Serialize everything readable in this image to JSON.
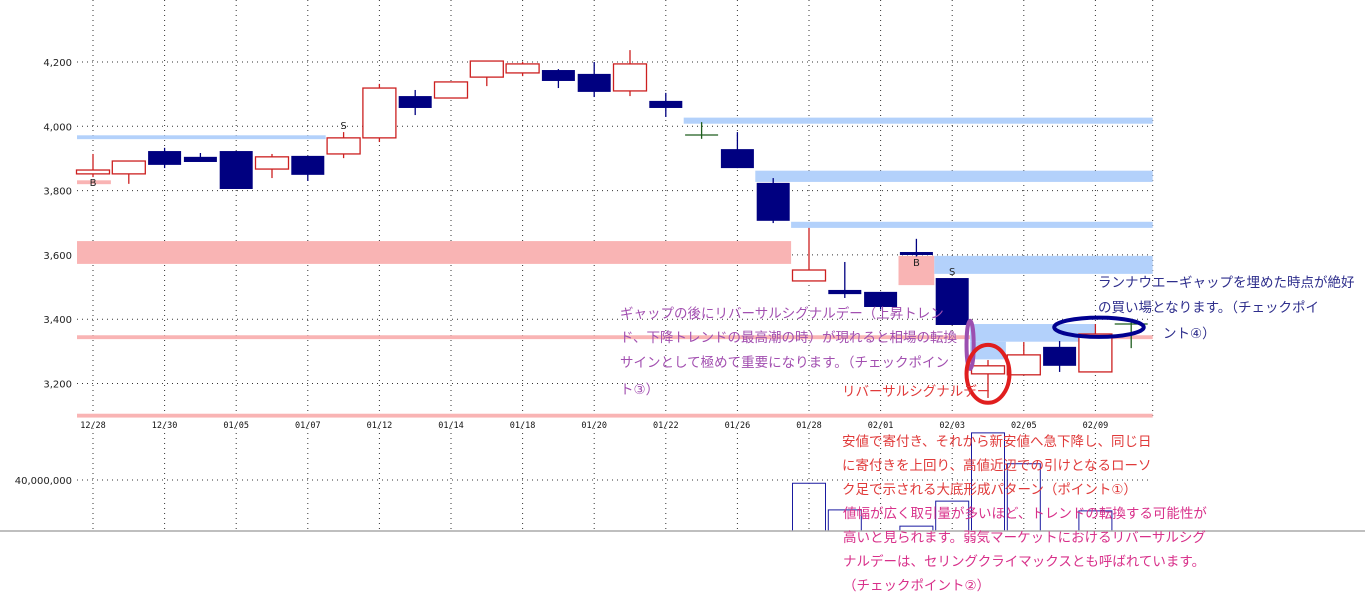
{
  "chart_data": {
    "type": "candlestick",
    "title": "",
    "ylim": [
      3080,
      4290
    ],
    "yticks": [
      "4,200",
      "4,000",
      "3,800",
      "3,600",
      "3,400",
      "3,200"
    ],
    "ytick_values": [
      4200,
      4000,
      3800,
      3600,
      3400,
      3200
    ],
    "date_labels": [
      "12/28",
      "12/30",
      "01/05",
      "01/07",
      "01/12",
      "01/14",
      "01/18",
      "01/20",
      "01/22",
      "01/26",
      "01/28",
      "02/01",
      "02/03",
      "02/05",
      "02/09"
    ],
    "grid": true,
    "colors": {
      "up": "#cc2020",
      "down": "#000080",
      "doji": "#1e5e1e",
      "resistance_band": "#b3d1fb",
      "support_band": "#f9b4b4"
    },
    "candles": [
      {
        "o": 3852,
        "h": 3914,
        "l": 3842,
        "c": 3864
      },
      {
        "o": 3852,
        "h": 3892,
        "l": 3821,
        "c": 3892
      },
      {
        "o": 3923,
        "h": 3933,
        "l": 3870,
        "c": 3880
      },
      {
        "o": 3905,
        "h": 3917,
        "l": 3889,
        "c": 3889
      },
      {
        "o": 3923,
        "h": 3923,
        "l": 3805,
        "c": 3805
      },
      {
        "o": 3867,
        "h": 3914,
        "l": 3839,
        "c": 3905
      },
      {
        "o": 3908,
        "h": 3908,
        "l": 3830,
        "c": 3849
      },
      {
        "o": 3914,
        "h": 3982,
        "l": 3901,
        "c": 3964
      },
      {
        "o": 3964,
        "h": 4132,
        "l": 3951,
        "c": 4119
      },
      {
        "o": 4094,
        "h": 4113,
        "l": 4035,
        "c": 4057
      },
      {
        "o": 4088,
        "h": 4138,
        "l": 4088,
        "c": 4138
      },
      {
        "o": 4153,
        "h": 4203,
        "l": 4125,
        "c": 4203
      },
      {
        "o": 4166,
        "h": 4200,
        "l": 4156,
        "c": 4194
      },
      {
        "o": 4175,
        "h": 4178,
        "l": 4119,
        "c": 4141
      },
      {
        "o": 4163,
        "h": 4200,
        "l": 4091,
        "c": 4107
      },
      {
        "o": 4110,
        "h": 4237,
        "l": 4094,
        "c": 4194
      },
      {
        "o": 4079,
        "h": 4104,
        "l": 4029,
        "c": 4057
      },
      {
        "o": 3973,
        "h": 4013,
        "l": 3961,
        "c": 3973
      },
      {
        "o": 3929,
        "h": 3982,
        "l": 3870,
        "c": 3870
      },
      {
        "o": 3824,
        "h": 3839,
        "l": 3699,
        "c": 3706
      },
      {
        "o": 3519,
        "h": 3684,
        "l": 3519,
        "c": 3553
      },
      {
        "o": 3491,
        "h": 3578,
        "l": 3466,
        "c": 3478
      },
      {
        "o": 3485,
        "h": 3485,
        "l": 3430,
        "c": 3438
      },
      {
        "o": 3609,
        "h": 3650,
        "l": 3595,
        "c": 3603
      },
      {
        "o": 3528,
        "h": 3528,
        "l": 3382,
        "c": 3382
      },
      {
        "o": 3230,
        "h": 3273,
        "l": 3155,
        "c": 3255
      },
      {
        "o": 3227,
        "h": 3329,
        "l": 3227,
        "c": 3289
      },
      {
        "o": 3314,
        "h": 3332,
        "l": 3236,
        "c": 3255
      },
      {
        "o": 3236,
        "h": 3385,
        "l": 3236,
        "c": 3354
      },
      {
        "o": 3385,
        "h": 3391,
        "l": 3310,
        "c": 3385
      }
    ],
    "signals": [
      {
        "label": "B",
        "candle": 0,
        "pos": "below"
      },
      {
        "label": "S",
        "candle": 7,
        "pos": "above"
      },
      {
        "label": "B",
        "candle": 23,
        "pos": "below"
      },
      {
        "label": "S",
        "candle": 24,
        "pos": "above"
      }
    ],
    "bands": [
      {
        "kind": "resistance",
        "from": -0.5,
        "to": 6.5,
        "lo": 3960,
        "hi": 3972
      },
      {
        "kind": "support",
        "from": -0.4,
        "to": 0.5,
        "lo": 3820,
        "hi": 3832
      },
      {
        "kind": "support",
        "from": -0.5,
        "to": 19.5,
        "lo": 3572,
        "hi": 3643
      },
      {
        "kind": "support",
        "from": -0.5,
        "to": 29.6,
        "lo": 3338,
        "hi": 3350
      },
      {
        "kind": "support",
        "from": -0.5,
        "to": 29.6,
        "lo": 3094,
        "hi": 3106
      },
      {
        "kind": "resistance",
        "from": 16.5,
        "to": 29.6,
        "lo": 4008,
        "hi": 4027
      },
      {
        "kind": "resistance",
        "from": 18.5,
        "to": 29.6,
        "lo": 3827,
        "hi": 3862
      },
      {
        "kind": "resistance",
        "from": 19.5,
        "to": 29.6,
        "lo": 3684,
        "hi": 3703
      },
      {
        "kind": "support",
        "from": 22.5,
        "to": 23.5,
        "lo": 3506,
        "hi": 3597
      },
      {
        "kind": "resistance",
        "from": 23.5,
        "to": 29.6,
        "lo": 3541,
        "hi": 3597
      },
      {
        "kind": "resistance",
        "from": 24.5,
        "to": 28,
        "lo": 3330,
        "hi": 3385
      },
      {
        "kind": "resistance",
        "from": 24.5,
        "to": 25.5,
        "lo": 3275,
        "hi": 3330
      }
    ],
    "highlights": [
      {
        "shape": "ellipse",
        "color": "#9b4fb0",
        "candle": 24.5,
        "price": 3320,
        "w_days": 0.2,
        "h_price": 150
      },
      {
        "shape": "ellipse",
        "color": "#e01e1e",
        "candle": 25,
        "price": 3230,
        "w_days": 1.2,
        "h_price": 180
      },
      {
        "shape": "ellipse",
        "color": "#000090",
        "candle": 28.1,
        "price": 3375,
        "w_days": 2.5,
        "h_price": 60
      }
    ],
    "volume": {
      "ytick": "40,000,000",
      "ytick_value": 40000000,
      "bars": [
        {
          "candle": 20,
          "value": 39000000
        },
        {
          "candle": 21,
          "value": 30800000
        },
        {
          "candle": 23,
          "value": 25800000
        },
        {
          "candle": 24,
          "value": 33500000
        },
        {
          "candle": 25,
          "value": 54500000
        },
        {
          "candle": 26,
          "value": 45000000
        },
        {
          "candle": 28,
          "value": 30500000
        }
      ]
    }
  },
  "notes": {
    "gap_reversal": [
      "ギャップの後にリバーサルシグナルデー（上昇トレン",
      "ド、下降トレンドの最高潮の時）が現れると相場の転換",
      "サインとして極めて重要になります。（チェックポイン",
      "ト③）"
    ],
    "reversal_title": "リバーサルシグナルデー",
    "reversal_desc": [
      "安値で寄付き、それから新安値へ急下降し、同じ日",
      "に寄付きを上回り、高値近辺での引けとなるローソ",
      "ク足で示される大底形成パターン（ポイント①）"
    ],
    "reversal_volume": [
      "値幅が広く取引量が多いほど、トレンドの転換する可能性が",
      "高いと見られます。弱気マーケットにおけるリバーサルシグ",
      "ナルデーは、セリングクライマックスとも呼ばれています。",
      "（チェックポイント②）"
    ],
    "runaway_gap": [
      "ランナウエーギャップを埋めた時点が絶好",
      "の買い場となります。（チェックポイ",
      "ント④）"
    ]
  }
}
